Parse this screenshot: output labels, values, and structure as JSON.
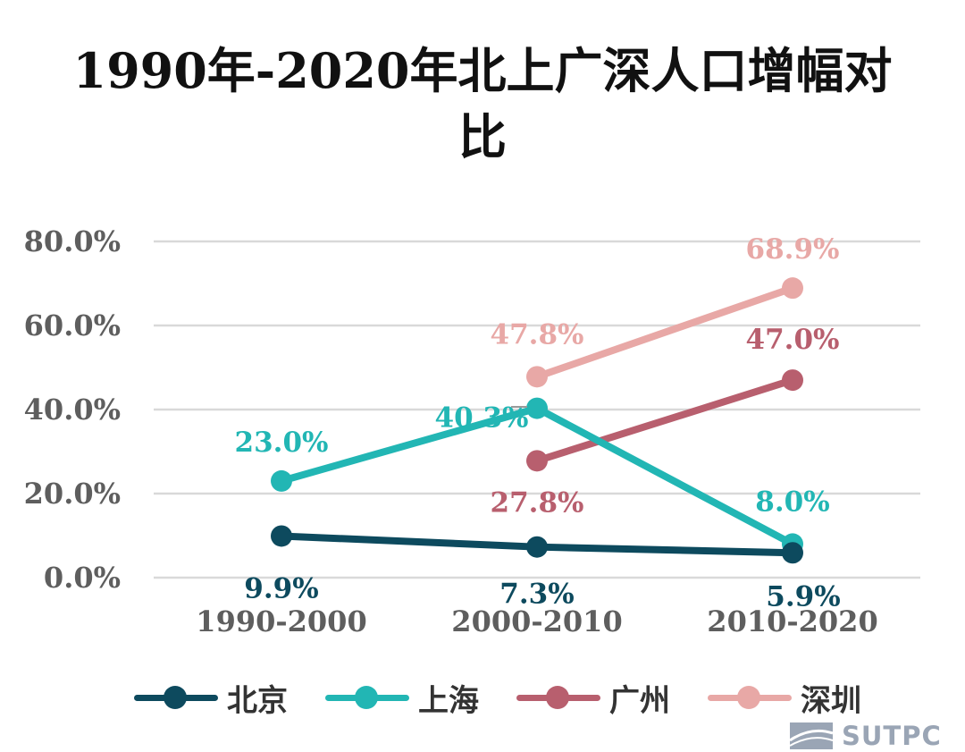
{
  "colors": {
    "北京": "#0d4a5e",
    "上海": "#22b6b4",
    "广州": "#b85f6e",
    "深圳": "#e8a8a6",
    "grid": "#d9d9d9",
    "tick": "#5e5e5e",
    "watermark": "#9aa5b5"
  },
  "chart_data": {
    "type": "line",
    "title": "1990年-2020年北上广深人口增幅对比",
    "categories": [
      "1990-2000",
      "2000-2010",
      "2010-2020"
    ],
    "ylim": [
      0,
      80
    ],
    "y_ticks": [
      0,
      20,
      40,
      60,
      80
    ],
    "y_tick_labels": [
      "0.0%",
      "20.0%",
      "40.0%",
      "60.0%",
      "80.0%"
    ],
    "grid": true,
    "legend_position": "bottom",
    "series": [
      {
        "name": "北京",
        "values": [
          9.9,
          7.3,
          5.9
        ],
        "labels": [
          "9.9%",
          "7.3%",
          "5.9%"
        ]
      },
      {
        "name": "上海",
        "values": [
          23.0,
          40.3,
          8.0
        ],
        "labels": [
          "23.0%",
          "40.3%",
          "8.0%"
        ]
      },
      {
        "name": "广州",
        "values": [
          null,
          27.8,
          47.0
        ],
        "labels": [
          "",
          "27.8%",
          "47.0%"
        ]
      },
      {
        "name": "深圳",
        "values": [
          null,
          47.8,
          68.9
        ],
        "labels": [
          "",
          "47.8%",
          "68.9%"
        ]
      }
    ]
  },
  "legend": [
    {
      "label": "北京"
    },
    {
      "label": "上海"
    },
    {
      "label": "广州"
    },
    {
      "label": "深圳"
    }
  ],
  "watermark": {
    "text": "SUTPC"
  }
}
